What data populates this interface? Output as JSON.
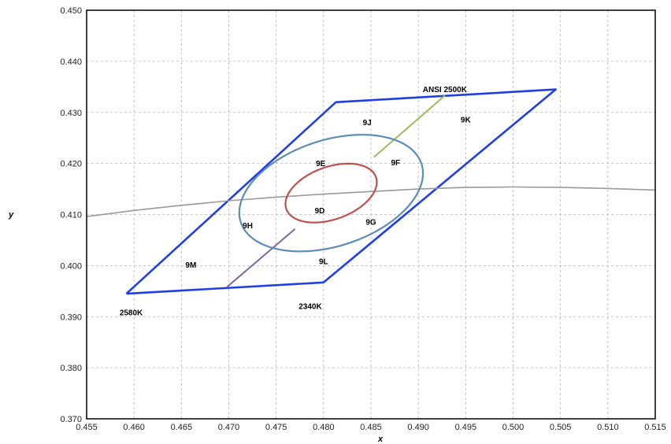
{
  "chart_data": {
    "type": "line",
    "title": "",
    "xlabel": "x",
    "ylabel": "y",
    "xlim": [
      0.455,
      0.515
    ],
    "ylim": [
      0.37,
      0.45
    ],
    "grid": true,
    "x_ticks": [
      "0.455",
      "0.460",
      "0.465",
      "0.470",
      "0.475",
      "0.480",
      "0.485",
      "0.490",
      "0.495",
      "0.500",
      "0.505",
      "0.510",
      "0.515"
    ],
    "y_ticks": [
      "0.370",
      "0.380",
      "0.390",
      "0.400",
      "0.410",
      "0.420",
      "0.430",
      "0.440",
      "0.450"
    ],
    "colors": {
      "quadrangle": "#1f3fe6",
      "outer_ellipse": "#5b8db8",
      "inner_ellipse": "#c0504d",
      "planckian_locus": "#9a9a9a",
      "isotherm_upper": "#9bbb59",
      "isotherm_lower": "#8064a2",
      "grid": "#b5b5b5"
    },
    "series": [
      {
        "key": "quadrangle",
        "points": [
          [
            0.4592,
            0.3945
          ],
          [
            0.4813,
            0.432
          ],
          [
            0.5045,
            0.4345
          ],
          [
            0.48,
            0.3967
          ],
          [
            0.4592,
            0.3945
          ]
        ]
      },
      {
        "key": "planckian_locus",
        "points": [
          [
            0.455,
            0.4096
          ],
          [
            0.46,
            0.4108
          ],
          [
            0.465,
            0.4118
          ],
          [
            0.47,
            0.4127
          ],
          [
            0.475,
            0.4134
          ],
          [
            0.48,
            0.414
          ],
          [
            0.485,
            0.4145
          ],
          [
            0.49,
            0.415
          ],
          [
            0.495,
            0.4153
          ],
          [
            0.5,
            0.4154
          ],
          [
            0.505,
            0.4153
          ],
          [
            0.51,
            0.4151
          ],
          [
            0.515,
            0.4148
          ]
        ]
      },
      {
        "key": "isotherm_upper",
        "points": [
          [
            0.4853,
            0.4212
          ],
          [
            0.4928,
            0.4333
          ]
        ]
      },
      {
        "key": "isotherm_lower",
        "points": [
          [
            0.4698,
            0.3958
          ],
          [
            0.477,
            0.4072
          ]
        ]
      }
    ],
    "ellipses": [
      {
        "key": "inner_ellipse",
        "center": [
          0.4808,
          0.4142
        ],
        "a": 0.0063,
        "b": 0.0041,
        "angle_deg": 58
      },
      {
        "key": "outer_ellipse",
        "center": [
          0.4808,
          0.4142
        ],
        "a": 0.0124,
        "b": 0.0084,
        "angle_deg": 58
      }
    ],
    "bin_labels": [
      {
        "text": "9J",
        "x": 0.4846,
        "y": 0.4275
      },
      {
        "text": "9K",
        "x": 0.495,
        "y": 0.428
      },
      {
        "text": "9E",
        "x": 0.4797,
        "y": 0.4195
      },
      {
        "text": "9F",
        "x": 0.4876,
        "y": 0.4196
      },
      {
        "text": "9D",
        "x": 0.4796,
        "y": 0.4102
      },
      {
        "text": "9H",
        "x": 0.472,
        "y": 0.4073
      },
      {
        "text": "9G",
        "x": 0.485,
        "y": 0.408
      },
      {
        "text": "9M",
        "x": 0.466,
        "y": 0.3996
      },
      {
        "text": "9L",
        "x": 0.48,
        "y": 0.4003
      }
    ],
    "cct_labels": [
      {
        "text": "ANSI 2500K",
        "x": 0.4928,
        "y": 0.434
      },
      {
        "text": "2580K",
        "x": 0.4597,
        "y": 0.3903
      },
      {
        "text": "2340K",
        "x": 0.4786,
        "y": 0.3915
      }
    ]
  }
}
